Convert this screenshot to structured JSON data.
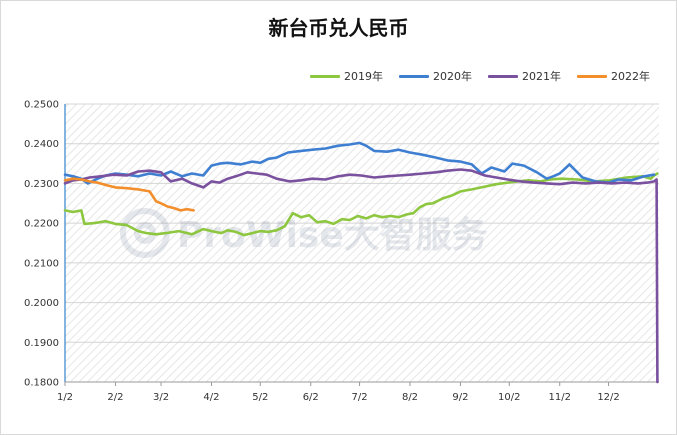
{
  "chart_data": {
    "type": "line",
    "title": "新台币兑人民币",
    "xlabel": "",
    "ylabel": "",
    "ylim": [
      0.18,
      0.25
    ],
    "ytick_values": [
      0.18,
      0.19,
      0.2,
      0.21,
      0.22,
      0.23,
      0.24,
      0.25
    ],
    "ytick_labels": [
      "0.1800",
      "0.1900",
      "0.2000",
      "0.2100",
      "0.2200",
      "0.2300",
      "0.2400",
      "0.2500"
    ],
    "xtick_labels": [
      "1/2",
      "2/2",
      "3/2",
      "4/2",
      "5/2",
      "6/2",
      "7/2",
      "8/2",
      "9/2",
      "10/2",
      "11/2",
      "12/2"
    ],
    "xtick_days": [
      0,
      31,
      59,
      90,
      120,
      151,
      181,
      212,
      243,
      273,
      304,
      334
    ],
    "xlim_days": [
      0,
      365
    ],
    "legend_position": "top-right",
    "grid": "horizontal",
    "watermark": "ProWise大智服务",
    "series": [
      {
        "name": "2019年",
        "color": "#8dc63f",
        "x": [
          0,
          5,
          10,
          12,
          18,
          25,
          31,
          38,
          45,
          50,
          56,
          62,
          70,
          78,
          85,
          90,
          96,
          100,
          105,
          110,
          115,
          120,
          125,
          130,
          135,
          140,
          145,
          150,
          155,
          160,
          165,
          170,
          175,
          180,
          185,
          190,
          195,
          200,
          205,
          210,
          214,
          218,
          222,
          226,
          232,
          238,
          243,
          250,
          258,
          265,
          272,
          278,
          285,
          292,
          298,
          305,
          315,
          325,
          335,
          345,
          355,
          360,
          362,
          364
        ],
        "values": [
          0.2232,
          0.2228,
          0.2232,
          0.2198,
          0.22,
          0.2205,
          0.2198,
          0.2195,
          0.218,
          0.2175,
          0.2172,
          0.2175,
          0.218,
          0.2172,
          0.2185,
          0.218,
          0.2175,
          0.2182,
          0.2178,
          0.217,
          0.2175,
          0.218,
          0.2178,
          0.2182,
          0.2192,
          0.2225,
          0.2215,
          0.222,
          0.2202,
          0.2205,
          0.2198,
          0.221,
          0.2208,
          0.2218,
          0.2212,
          0.222,
          0.2215,
          0.2218,
          0.2215,
          0.2222,
          0.2225,
          0.224,
          0.2248,
          0.225,
          0.2262,
          0.227,
          0.228,
          0.2285,
          0.2292,
          0.2298,
          0.2302,
          0.2305,
          0.2308,
          0.2305,
          0.231,
          0.2312,
          0.231,
          0.2305,
          0.2308,
          0.2315,
          0.2318,
          0.2312,
          0.232,
          0.2325
        ]
      },
      {
        "name": "2020年",
        "color": "#3f7fd1",
        "x": [
          0,
          5,
          10,
          14,
          20,
          25,
          31,
          38,
          45,
          52,
          59,
          65,
          72,
          78,
          85,
          90,
          95,
          100,
          108,
          115,
          120,
          125,
          130,
          137,
          145,
          152,
          160,
          168,
          175,
          181,
          185,
          190,
          198,
          205,
          212,
          220,
          228,
          235,
          243,
          250,
          256,
          262,
          270,
          275,
          282,
          290,
          296,
          300,
          304,
          310,
          318,
          326,
          334,
          340,
          348,
          356,
          362
        ],
        "values": [
          0.2322,
          0.2318,
          0.2312,
          0.23,
          0.2312,
          0.232,
          0.2325,
          0.2322,
          0.2318,
          0.2325,
          0.232,
          0.233,
          0.2318,
          0.2325,
          0.232,
          0.2345,
          0.235,
          0.2352,
          0.2348,
          0.2355,
          0.2352,
          0.2362,
          0.2365,
          0.2378,
          0.2382,
          0.2385,
          0.2388,
          0.2395,
          0.2398,
          0.2402,
          0.2395,
          0.2382,
          0.238,
          0.2385,
          0.2378,
          0.2372,
          0.2365,
          0.2358,
          0.2355,
          0.2348,
          0.2325,
          0.234,
          0.233,
          0.235,
          0.2345,
          0.2328,
          0.2312,
          0.2318,
          0.2325,
          0.2348,
          0.2315,
          0.2305,
          0.2302,
          0.231,
          0.2308,
          0.2318,
          0.2322
        ]
      },
      {
        "name": "2021年",
        "color": "#7a519e",
        "x": [
          0,
          5,
          10,
          15,
          22,
          30,
          38,
          45,
          52,
          59,
          65,
          72,
          78,
          85,
          90,
          95,
          100,
          105,
          112,
          118,
          124,
          130,
          138,
          145,
          152,
          160,
          168,
          175,
          182,
          190,
          198,
          205,
          212,
          220,
          228,
          235,
          243,
          250,
          258,
          265,
          272,
          280,
          288,
          296,
          304,
          312,
          320,
          328,
          336,
          344,
          352,
          358,
          362,
          363.5,
          364
        ],
        "values": [
          0.23,
          0.2308,
          0.231,
          0.2315,
          0.2318,
          0.2322,
          0.232,
          0.233,
          0.2332,
          0.2328,
          0.2305,
          0.2312,
          0.23,
          0.229,
          0.2305,
          0.2302,
          0.2312,
          0.2318,
          0.2328,
          0.2325,
          0.2322,
          0.2312,
          0.2305,
          0.2308,
          0.2312,
          0.231,
          0.2318,
          0.2322,
          0.232,
          0.2315,
          0.2318,
          0.232,
          0.2322,
          0.2325,
          0.2328,
          0.2332,
          0.2335,
          0.2332,
          0.232,
          0.2315,
          0.231,
          0.2305,
          0.2302,
          0.23,
          0.2298,
          0.2302,
          0.23,
          0.2302,
          0.23,
          0.2302,
          0.23,
          0.2302,
          0.2305,
          0.231,
          0.18
        ]
      },
      {
        "name": "2022年",
        "color": "#f28e2b",
        "x": [
          0,
          5,
          10,
          15,
          20,
          26,
          31,
          38,
          45,
          52,
          56,
          59,
          63,
          67,
          71,
          75,
          79
        ],
        "values": [
          0.2308,
          0.2312,
          0.231,
          0.2305,
          0.2302,
          0.2295,
          0.229,
          0.2288,
          0.2285,
          0.228,
          0.2255,
          0.225,
          0.2242,
          0.2238,
          0.2232,
          0.2235,
          0.2232
        ]
      }
    ]
  }
}
